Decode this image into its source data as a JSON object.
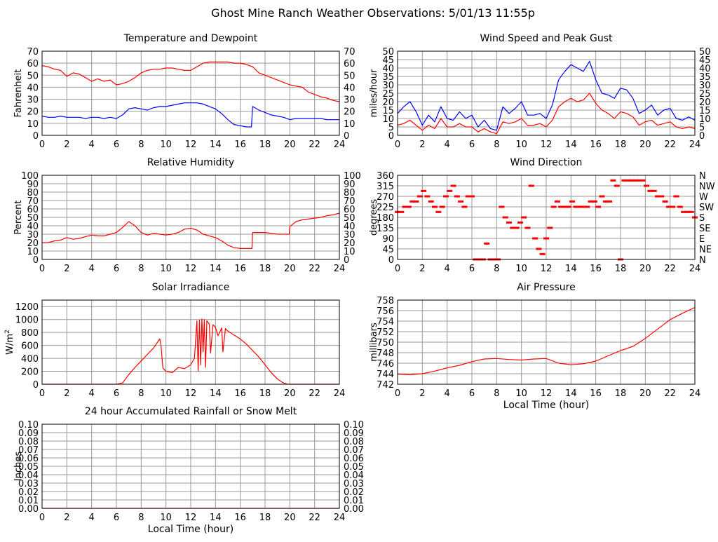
{
  "page_title": "Ghost Mine Ranch Weather Observations: 5/01/13 11:55p",
  "colors": {
    "red": "#ff0000",
    "blue": "#0000ff",
    "grid": "#999999"
  },
  "chart_data": [
    {
      "id": "temp",
      "type": "line",
      "title": "Temperature and Dewpoint",
      "ylabel": "Fahrenheit",
      "xlabel": "",
      "xlim": [
        0,
        24
      ],
      "ylim": [
        0,
        70
      ],
      "xticks": [
        0,
        2,
        4,
        6,
        8,
        10,
        12,
        14,
        16,
        18,
        20,
        22,
        24
      ],
      "yticks": [
        0,
        10,
        20,
        30,
        40,
        50,
        60,
        70
      ],
      "right_axis": true,
      "series": [
        {
          "color": "#ff0000",
          "x": [
            0,
            0.5,
            1,
            1.5,
            2,
            2.5,
            3,
            3.5,
            4,
            4.5,
            5,
            5.5,
            6,
            6.5,
            7,
            7.5,
            8,
            8.5,
            9,
            9.5,
            10,
            10.5,
            11,
            11.5,
            12,
            12.5,
            13,
            13.5,
            14,
            14.5,
            15,
            15.5,
            16,
            16.5,
            17,
            17.5,
            18,
            18.5,
            19,
            19.5,
            20,
            20.5,
            21,
            21.5,
            22,
            22.5,
            23,
            23.5,
            24
          ],
          "y": [
            58,
            57,
            55,
            54,
            49,
            52,
            51,
            48,
            45,
            47,
            45,
            46,
            42,
            43,
            45,
            48,
            52,
            54,
            55,
            55,
            56,
            56,
            55,
            54,
            54,
            57,
            60,
            61,
            61,
            61,
            61,
            60,
            60,
            59,
            57,
            52,
            50,
            48,
            46,
            44,
            42,
            41,
            40,
            36,
            34,
            32,
            31,
            29,
            28
          ]
        },
        {
          "color": "#0000ff",
          "x": [
            0,
            0.5,
            1,
            1.5,
            2,
            2.5,
            3,
            3.5,
            4,
            4.5,
            5,
            5.5,
            6,
            6.5,
            7,
            7.5,
            8,
            8.5,
            9,
            9.5,
            10,
            10.5,
            11,
            11.5,
            12,
            12.5,
            13,
            13.5,
            14,
            14.5,
            15,
            15.5,
            16,
            16.5,
            16.9,
            17.0,
            17.5,
            18,
            18.5,
            19,
            19.5,
            20,
            20.5,
            21,
            21.5,
            22,
            22.5,
            23,
            23.5,
            24
          ],
          "y": [
            16,
            15,
            15,
            16,
            15,
            15,
            15,
            14,
            15,
            15,
            14,
            15,
            14,
            17,
            22,
            23,
            22,
            21,
            23,
            24,
            24,
            25,
            26,
            27,
            27,
            27,
            26,
            24,
            22,
            18,
            13,
            9,
            8,
            7,
            7,
            24,
            21,
            19,
            17,
            16,
            15,
            13,
            14,
            14,
            14,
            14,
            14,
            13,
            13,
            13
          ]
        }
      ]
    },
    {
      "id": "wind",
      "type": "line",
      "title": "Wind Speed and Peak Gust",
      "ylabel": "miles/hour",
      "xlabel": "",
      "xlim": [
        0,
        24
      ],
      "ylim": [
        0,
        50
      ],
      "xticks": [
        0,
        2,
        4,
        6,
        8,
        10,
        12,
        14,
        16,
        18,
        20,
        22,
        24
      ],
      "yticks": [
        0,
        5,
        10,
        15,
        20,
        25,
        30,
        35,
        40,
        45,
        50
      ],
      "right_axis": true,
      "series": [
        {
          "color": "#0000ff",
          "x": [
            0,
            0.5,
            1,
            1.5,
            2,
            2.5,
            3,
            3.5,
            4,
            4.5,
            5,
            5.5,
            6,
            6.5,
            7,
            7.5,
            8,
            8.5,
            9,
            9.5,
            10,
            10.5,
            11,
            11.5,
            12,
            12.5,
            13,
            13.5,
            14,
            14.5,
            15,
            15.5,
            16,
            16.5,
            17,
            17.5,
            18,
            18.5,
            19,
            19.5,
            20,
            20.5,
            21,
            21.5,
            22,
            22.5,
            23,
            23.5,
            24
          ],
          "y": [
            13,
            17,
            20,
            14,
            6,
            12,
            8,
            17,
            10,
            9,
            14,
            10,
            12,
            5,
            9,
            4,
            3,
            17,
            13,
            16,
            20,
            12,
            12,
            13,
            10,
            18,
            33,
            38,
            42,
            40,
            38,
            44,
            33,
            25,
            24,
            22,
            28,
            27,
            22,
            13,
            15,
            18,
            12,
            15,
            16,
            10,
            9,
            11,
            9
          ]
        },
        {
          "color": "#ff0000",
          "x": [
            0,
            0.5,
            1,
            1.5,
            2,
            2.5,
            3,
            3.5,
            4,
            4.5,
            5,
            5.5,
            6,
            6.5,
            7,
            7.5,
            8,
            8.5,
            9,
            9.5,
            10,
            10.5,
            11,
            11.5,
            12,
            12.5,
            13,
            13.5,
            14,
            14.5,
            15,
            15.5,
            16,
            16.5,
            17,
            17.5,
            18,
            18.5,
            19,
            19.5,
            20,
            20.5,
            21,
            21.5,
            22,
            22.5,
            23,
            23.5,
            24
          ],
          "y": [
            6,
            7,
            9,
            6,
            3,
            6,
            4,
            10,
            5,
            5,
            7,
            5,
            5,
            2,
            4,
            2,
            1,
            8,
            7,
            8,
            10,
            6,
            6,
            7,
            5,
            9,
            17,
            20,
            22,
            20,
            21,
            25,
            19,
            15,
            13,
            10,
            14,
            13,
            11,
            6,
            8,
            9,
            6,
            7,
            8,
            5,
            4,
            5,
            4
          ]
        }
      ]
    },
    {
      "id": "rh",
      "type": "line",
      "title": "Relative Humidity",
      "ylabel": "Percent",
      "xlabel": "",
      "xlim": [
        0,
        24
      ],
      "ylim": [
        0,
        100
      ],
      "xticks": [
        0,
        2,
        4,
        6,
        8,
        10,
        12,
        14,
        16,
        18,
        20,
        22,
        24
      ],
      "yticks": [
        0,
        10,
        20,
        30,
        40,
        50,
        60,
        70,
        80,
        90,
        100
      ],
      "right_axis": true,
      "series": [
        {
          "color": "#ff0000",
          "x": [
            0,
            0.5,
            1,
            1.5,
            2,
            2.5,
            3,
            3.5,
            4,
            4.5,
            5,
            5.5,
            6,
            6.5,
            7,
            7.5,
            8,
            8.5,
            9,
            9.5,
            10,
            10.5,
            11,
            11.5,
            12,
            12.5,
            13,
            13.5,
            14,
            14.5,
            15,
            15.5,
            16,
            16.5,
            16.95,
            17.0,
            17.5,
            18,
            18.5,
            19,
            19.5,
            19.95,
            20.0,
            20.5,
            21,
            21.5,
            22,
            22.5,
            23,
            23.5,
            24
          ],
          "y": [
            20,
            20,
            22,
            23,
            26,
            24,
            25,
            27,
            29,
            28,
            28,
            30,
            32,
            38,
            45,
            40,
            32,
            29,
            31,
            30,
            29,
            30,
            32,
            36,
            37,
            35,
            30,
            28,
            26,
            22,
            17,
            14,
            13,
            13,
            13,
            32,
            32,
            32,
            31,
            30,
            30,
            30,
            39,
            45,
            47,
            48,
            49,
            50,
            52,
            53,
            55
          ]
        }
      ]
    },
    {
      "id": "wdir",
      "type": "scatter",
      "title": "Wind Direction",
      "ylabel": "degrees",
      "xlabel": "",
      "xlim": [
        0,
        24
      ],
      "ylim": [
        0,
        360
      ],
      "xticks": [
        0,
        2,
        4,
        6,
        8,
        10,
        12,
        14,
        16,
        18,
        20,
        22,
        24
      ],
      "yticks": [
        0,
        45,
        90,
        135,
        180,
        225,
        270,
        315,
        360
      ],
      "right_labels": [
        "N",
        "NE",
        "E",
        "SE",
        "S",
        "SW",
        "W",
        "NW",
        "N"
      ],
      "series": [
        {
          "color": "#ff0000",
          "x": [
            0,
            0.3,
            0.6,
            0.9,
            1.2,
            1.5,
            1.8,
            2.1,
            2.4,
            2.7,
            3.0,
            3.3,
            3.6,
            3.9,
            4.2,
            4.5,
            4.8,
            5.1,
            5.4,
            5.7,
            6.0,
            6.3,
            6.6,
            6.9,
            7.2,
            7.5,
            7.8,
            8.1,
            8.4,
            8.7,
            9.0,
            9.3,
            9.6,
            9.9,
            10.2,
            10.5,
            10.8,
            11.1,
            11.4,
            11.7,
            12.0,
            12.3,
            12.6,
            12.9,
            13.2,
            13.5,
            13.8,
            14.1,
            14.4,
            14.7,
            15.0,
            15.3,
            15.6,
            15.9,
            16.2,
            16.5,
            16.8,
            17.1,
            17.4,
            17.7,
            18.0,
            18.3,
            18.6,
            18.9,
            19.2,
            19.5,
            19.8,
            20.1,
            20.4,
            20.7,
            21.0,
            21.3,
            21.6,
            21.9,
            22.2,
            22.5,
            22.8,
            23.1,
            23.4,
            23.7,
            24.0
          ],
          "y": [
            203,
            203,
            225,
            225,
            248,
            248,
            270,
            293,
            270,
            248,
            225,
            203,
            225,
            270,
            293,
            315,
            270,
            248,
            225,
            270,
            270,
            0,
            0,
            0,
            68,
            0,
            0,
            0,
            225,
            180,
            158,
            135,
            135,
            158,
            180,
            135,
            315,
            90,
            45,
            23,
            90,
            135,
            225,
            248,
            225,
            225,
            225,
            248,
            225,
            225,
            225,
            225,
            248,
            248,
            225,
            270,
            248,
            248,
            338,
            315,
            0,
            338,
            338,
            338,
            338,
            338,
            338,
            315,
            293,
            293,
            270,
            270,
            248,
            225,
            225,
            270,
            225,
            203,
            203,
            203,
            180
          ]
        }
      ]
    },
    {
      "id": "solar",
      "type": "line",
      "title": "Solar Irradiance",
      "ylabel": "W/m",
      "ylabel_sup": "2",
      "xlabel": "",
      "xlim": [
        0,
        24
      ],
      "ylim": [
        0,
        1300
      ],
      "xticks": [
        0,
        2,
        4,
        6,
        8,
        10,
        12,
        14,
        16,
        18,
        20,
        22,
        24
      ],
      "yticks": [
        0,
        200,
        400,
        600,
        800,
        1000,
        1200
      ],
      "right_axis": false,
      "series": [
        {
          "color": "#ff0000",
          "x": [
            0,
            1,
            2,
            3,
            4,
            5,
            6,
            6.5,
            7,
            7.5,
            8,
            8.5,
            9,
            9.5,
            9.6,
            9.75,
            10,
            10.5,
            11,
            11.5,
            12,
            12.3,
            12.5,
            12.6,
            12.7,
            12.8,
            12.9,
            13.0,
            13.1,
            13.2,
            13.3,
            13.5,
            13.6,
            13.8,
            14,
            14.2,
            14.5,
            14.6,
            14.8,
            15,
            15.5,
            16,
            16.5,
            17,
            17.5,
            18,
            18.5,
            19,
            19.5,
            19.8,
            20,
            21,
            22,
            23,
            24
          ],
          "y": [
            0,
            0,
            0,
            0,
            0,
            0,
            0,
            20,
            150,
            260,
            360,
            460,
            560,
            700,
            600,
            250,
            200,
            180,
            260,
            240,
            300,
            400,
            980,
            200,
            990,
            300,
            1010,
            500,
            1000,
            260,
            980,
            930,
            480,
            920,
            880,
            750,
            870,
            500,
            860,
            820,
            760,
            700,
            620,
            520,
            420,
            300,
            180,
            80,
            20,
            0,
            0,
            0,
            0,
            0,
            0
          ]
        }
      ]
    },
    {
      "id": "pressure",
      "type": "line",
      "title": "Air Pressure",
      "ylabel": "millibars",
      "xlabel": "Local Time (hour)",
      "xlim": [
        0,
        24
      ],
      "ylim": [
        742,
        758
      ],
      "xticks": [
        0,
        2,
        4,
        6,
        8,
        10,
        12,
        14,
        16,
        18,
        20,
        22,
        24
      ],
      "yticks": [
        742,
        744,
        746,
        748,
        750,
        752,
        754,
        756,
        758
      ],
      "right_axis": false,
      "series": [
        {
          "color": "#ff0000",
          "x": [
            0,
            1,
            2,
            3,
            4,
            5,
            6,
            7,
            8,
            9,
            10,
            11,
            12,
            13,
            14,
            15,
            16,
            17,
            18,
            19,
            20,
            21,
            22,
            23,
            24
          ],
          "y": [
            743.9,
            743.8,
            744.0,
            744.5,
            745.1,
            745.6,
            746.3,
            746.8,
            746.9,
            746.7,
            746.6,
            746.8,
            746.9,
            746.0,
            745.7,
            745.9,
            746.4,
            747.4,
            748.4,
            749.2,
            750.7,
            752.5,
            754.3,
            755.5,
            756.6
          ]
        }
      ]
    },
    {
      "id": "rain",
      "type": "line",
      "title": "24 hour Accumulated Rainfall or Snow Melt",
      "ylabel": "Inches",
      "xlabel": "Local Time (hour)",
      "xlim": [
        0,
        24
      ],
      "ylim": [
        0,
        0.1
      ],
      "xticks": [
        0,
        2,
        4,
        6,
        8,
        10,
        12,
        14,
        16,
        18,
        20,
        22,
        24
      ],
      "yticks": [
        0,
        0.01,
        0.02,
        0.03,
        0.04,
        0.05,
        0.06,
        0.07,
        0.08,
        0.09,
        0.1
      ],
      "ytick_labels": [
        "0.00",
        "0.01",
        "0.02",
        "0.03",
        "0.04",
        "0.05",
        "0.06",
        "0.07",
        "0.08",
        "0.09",
        "0.10"
      ],
      "right_axis": true,
      "series": [
        {
          "color": "#ff0000",
          "x": [
            0,
            24
          ],
          "y": [
            0,
            0
          ]
        }
      ]
    }
  ]
}
